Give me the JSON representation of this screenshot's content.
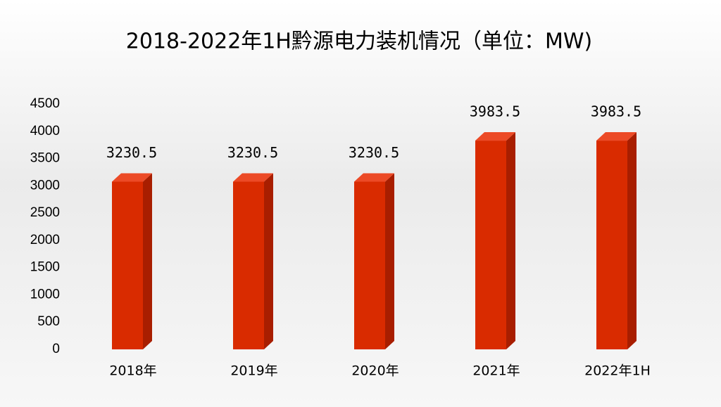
{
  "chart_data": {
    "type": "bar3d",
    "title": "2018-2022年1H黔源电力装机情况（单位：MW)",
    "categories": [
      "2018年",
      "2019年",
      "2020年",
      "2021年",
      "2022年1H"
    ],
    "values": [
      3230.5,
      3230.5,
      3230.5,
      3983.5,
      3983.5
    ],
    "color": "#d92b00",
    "ylim": [
      0,
      4500
    ],
    "yticks": [
      0,
      500,
      1000,
      1500,
      2000,
      2500,
      3000,
      3500,
      4000,
      4500
    ]
  }
}
